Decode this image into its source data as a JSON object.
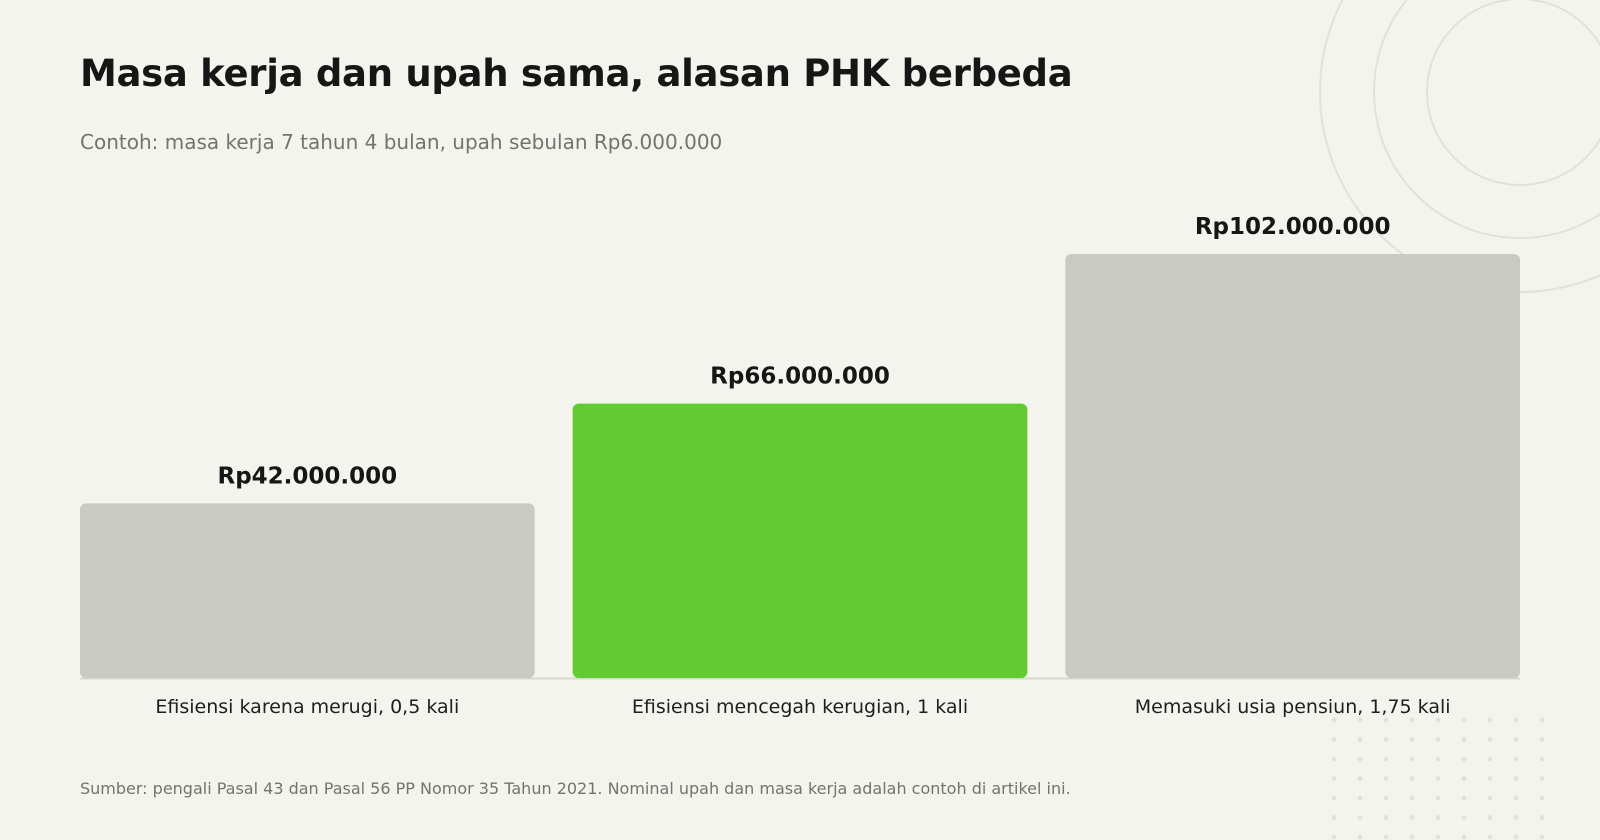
{
  "title": "Masa kerja dan upah sama, alasan PHK berbeda",
  "subtitle": "Contoh: masa kerja 7 tahun 4 bulan, upah sebulan Rp6.000.000",
  "source": "Sumber: pengali Pasal 43 dan Pasal 56 PP Nomor 35 Tahun 2021. Nominal upah dan masa kerja adalah contoh di artikel ini.",
  "colors": {
    "background": "#f4f4ef",
    "bar_default": "#cacac4",
    "bar_highlight": "#63cb32",
    "baseline": "#d8d8d2",
    "decoration": "#e2e2dc"
  },
  "chart_data": {
    "type": "bar",
    "categories": [
      "Efisiensi karena merugi, 0,5 kali",
      "Efisiensi mencegah kerugian, 1 kali",
      "Memasuki usia pensiun, 1,75 kali"
    ],
    "values": [
      42000000,
      66000000,
      102000000
    ],
    "value_labels": [
      "Rp42.000.000",
      "Rp66.000.000",
      "Rp102.000.000"
    ],
    "highlight_index": 1,
    "title": "Masa kerja dan upah sama, alasan PHK berbeda",
    "xlabel": "",
    "ylabel": "",
    "ylim": [
      0,
      102000000
    ],
    "grid": false,
    "legend": "none"
  }
}
